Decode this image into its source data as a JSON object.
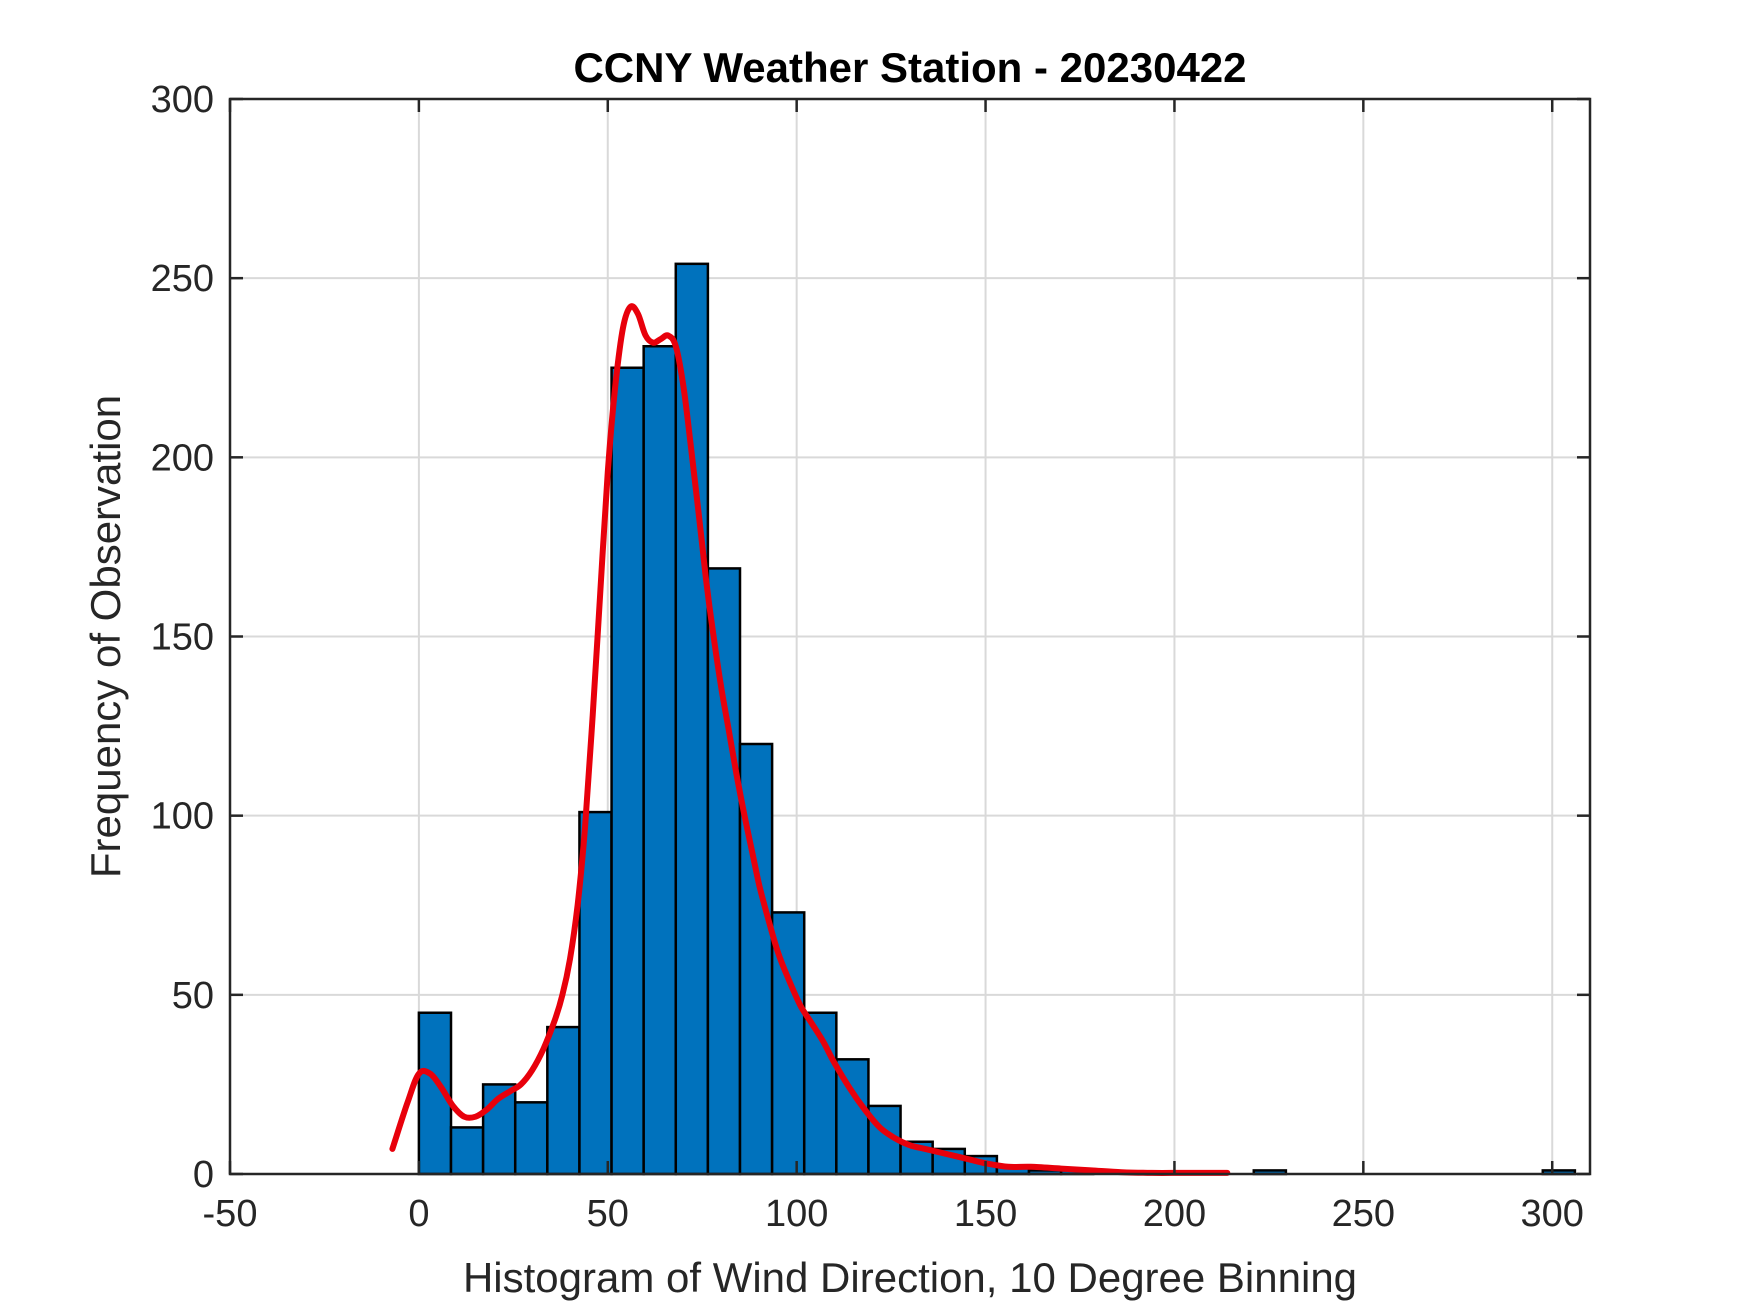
{
  "chart_data": {
    "type": "bar",
    "title": "CCNY Weather Station - 20230422",
    "xlabel": "Histogram of Wind Direction, 10 Degree Binning",
    "ylabel": "Frequency of Observation",
    "xlim": [
      -50,
      310
    ],
    "ylim": [
      0,
      300
    ],
    "xticks": [
      -50,
      0,
      50,
      100,
      150,
      200,
      250,
      300
    ],
    "xtick_labels": [
      "-50",
      "0",
      "50",
      "100",
      "150",
      "200",
      "250",
      "300"
    ],
    "yticks": [
      0,
      50,
      100,
      150,
      200,
      250,
      300
    ],
    "ytick_labels": [
      "0",
      "50",
      "100",
      "150",
      "200",
      "250",
      "300"
    ],
    "grid": true,
    "legend": "none",
    "bar_color": "#0072BD",
    "bar_edge_color": "#000000",
    "curve_color": "#E8000B",
    "bin_width": 8.5,
    "bins": [
      {
        "start": 0,
        "value": 45
      },
      {
        "start": 8.5,
        "value": 13
      },
      {
        "start": 17,
        "value": 25
      },
      {
        "start": 25.5,
        "value": 20
      },
      {
        "start": 34,
        "value": 41
      },
      {
        "start": 42.5,
        "value": 101
      },
      {
        "start": 51,
        "value": 225
      },
      {
        "start": 59.5,
        "value": 231
      },
      {
        "start": 68,
        "value": 254
      },
      {
        "start": 76.5,
        "value": 169
      },
      {
        "start": 85,
        "value": 120
      },
      {
        "start": 93.5,
        "value": 73
      },
      {
        "start": 102,
        "value": 45
      },
      {
        "start": 110.5,
        "value": 32
      },
      {
        "start": 119,
        "value": 19
      },
      {
        "start": 127.5,
        "value": 9
      },
      {
        "start": 136,
        "value": 7
      },
      {
        "start": 144.5,
        "value": 5
      },
      {
        "start": 153,
        "value": 2
      },
      {
        "start": 161.5,
        "value": 1
      },
      {
        "start": 170,
        "value": 1
      },
      {
        "start": 178.5,
        "value": 0
      },
      {
        "start": 187,
        "value": 0
      },
      {
        "start": 195.5,
        "value": 0
      },
      {
        "start": 204,
        "value": 0
      },
      {
        "start": 212.5,
        "value": 0
      },
      {
        "start": 221,
        "value": 1
      },
      {
        "start": 229.5,
        "value": 0
      },
      {
        "start": 238,
        "value": 0
      },
      {
        "start": 246.5,
        "value": 0
      },
      {
        "start": 255,
        "value": 0
      },
      {
        "start": 263.5,
        "value": 0
      },
      {
        "start": 272,
        "value": 0
      },
      {
        "start": 280.5,
        "value": 0
      },
      {
        "start": 289,
        "value": 0
      },
      {
        "start": 297.5,
        "value": 1
      }
    ],
    "density_curve": {
      "x": [
        -7,
        -3,
        0,
        3,
        6,
        9,
        12,
        15,
        18,
        21,
        24,
        27,
        30,
        33,
        36,
        38,
        40,
        42,
        44,
        46,
        48,
        50,
        52,
        54,
        56,
        58,
        60,
        62,
        64,
        66,
        68,
        70,
        72,
        74,
        76,
        78,
        80,
        82,
        84,
        86,
        88,
        90,
        92,
        95,
        98,
        101,
        104,
        107,
        110,
        114,
        118,
        122,
        126,
        130,
        134,
        138,
        142,
        146,
        150,
        156,
        162,
        170,
        178,
        186,
        194,
        202,
        210,
        214
      ],
      "y": [
        7,
        20,
        28,
        28,
        24,
        19,
        16,
        16,
        18,
        21,
        23,
        25,
        29,
        35,
        43,
        50,
        60,
        75,
        97,
        128,
        162,
        196,
        220,
        236,
        242,
        240,
        234,
        232,
        233,
        234,
        231,
        220,
        203,
        185,
        166,
        150,
        136,
        124,
        112,
        101,
        91,
        81,
        73,
        62,
        54,
        47,
        42,
        37,
        31,
        24,
        18,
        13,
        10,
        8,
        7,
        6,
        5,
        4,
        3,
        2,
        2,
        1.5,
        1,
        0.5,
        0.3,
        0.3,
        0.3,
        0.3
      ]
    }
  }
}
